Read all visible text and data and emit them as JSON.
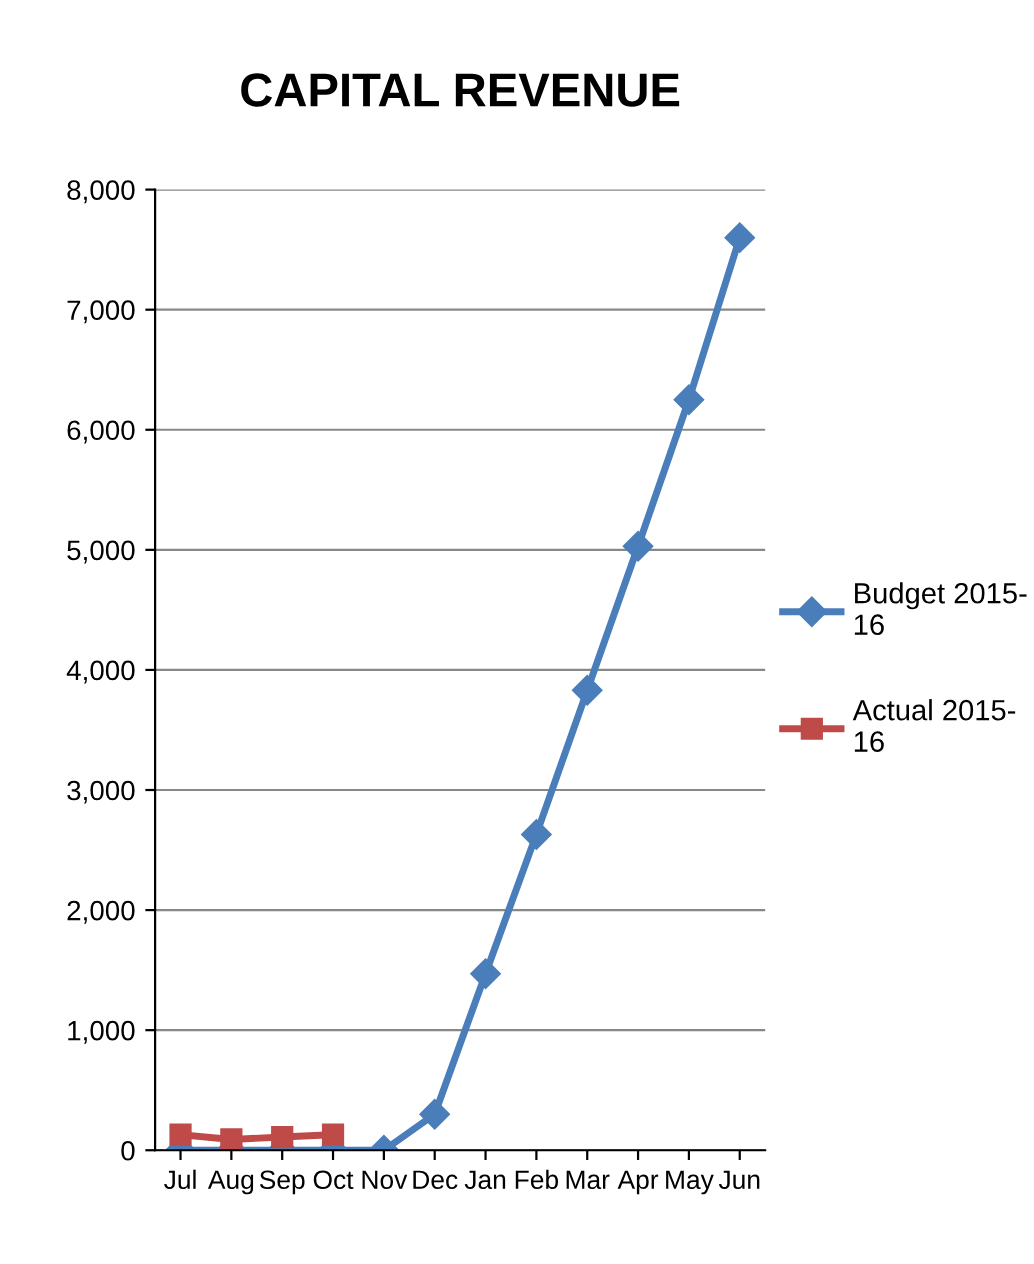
{
  "chart_data": {
    "type": "line",
    "title": "CAPITAL REVENUE",
    "categories": [
      "Jul",
      "Aug",
      "Sep",
      "Oct",
      "Nov",
      "Dec",
      "Jan",
      "Feb",
      "Mar",
      "Apr",
      "May",
      "Jun"
    ],
    "series": [
      {
        "name": "Budget 2015-16",
        "color": "#4a7ebb",
        "marker": "diamond",
        "values": [
          0,
          0,
          0,
          0,
          0,
          300,
          1470,
          2630,
          3830,
          5030,
          6250,
          7600
        ]
      },
      {
        "name": "Actual 2015-16",
        "color": "#be4b48",
        "marker": "square",
        "values": [
          130,
          90,
          110,
          130,
          null,
          null,
          null,
          null,
          null,
          null,
          null,
          null
        ]
      }
    ],
    "ylim": [
      0,
      8000
    ],
    "yticks": [
      {
        "value": 0,
        "label": "0"
      },
      {
        "value": 1000,
        "label": "1,000"
      },
      {
        "value": 2000,
        "label": "2,000"
      },
      {
        "value": 3000,
        "label": "3,000"
      },
      {
        "value": 4000,
        "label": "4,000"
      },
      {
        "value": 5000,
        "label": "5,000"
      },
      {
        "value": 6000,
        "label": "6,000"
      },
      {
        "value": 7000,
        "label": "7,000"
      },
      {
        "value": 8000,
        "label": "8,000"
      }
    ],
    "grid": "y",
    "legend": "right",
    "line_style": "solid"
  }
}
